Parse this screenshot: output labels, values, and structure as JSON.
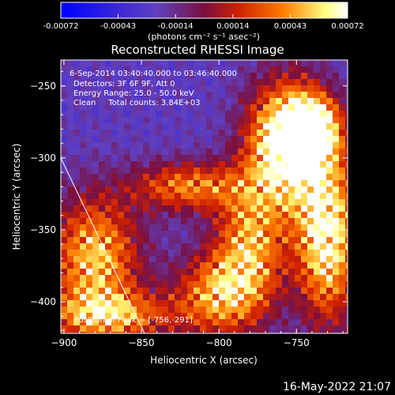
{
  "chart_data": {
    "type": "heatmap",
    "title": "Reconstructed RHESSI Image",
    "xlabel": "Heliocentric X (arcsec)",
    "ylabel": "Heliocentric Y (arcsec)",
    "xlim": [
      -902,
      -717
    ],
    "ylim": [
      -422,
      -232
    ],
    "x_ticks": [
      -900,
      -850,
      -800,
      -750
    ],
    "y_ticks": [
      -250,
      -300,
      -350,
      -400
    ],
    "colorbar": {
      "range": [
        -0.00072,
        0.00072
      ],
      "ticks": [
        "-0.00072",
        "-0.00043",
        "-0.00014",
        "0.00014",
        "0.00043",
        "0.00072"
      ],
      "unit_label": "(photons cm⁻² s⁻¹ asec⁻²)",
      "colormap": [
        "#0000ff",
        "#6040c0",
        "#7a1040",
        "#d02000",
        "#ff8000",
        "#ffff80",
        "#ffffff"
      ]
    },
    "annotations": [
      "6-Sep-2014 03:40:40.000 to 03:46:40.000",
      "Detectors: 3F 6F 9F, Att 0",
      "Energy Range: 25.0 - 50.0 keV",
      "Clean     Total counts: 3.84E+03",
      "Position of Peak = [-756,-291]"
    ],
    "peak": {
      "x": -756,
      "y": -291
    },
    "limb_line": [
      [
        -902,
        -300
      ],
      [
        -848,
        -422
      ]
    ],
    "hot_regions": [
      {
        "x": -756,
        "y": -291,
        "sx": 18,
        "sy": 30,
        "amp": 1.0
      },
      {
        "x": -740,
        "y": -280,
        "sx": 12,
        "sy": 15,
        "amp": 0.8
      },
      {
        "x": -730,
        "y": -355,
        "sx": 14,
        "sy": 40,
        "amp": 0.85
      },
      {
        "x": -780,
        "y": -360,
        "sx": 16,
        "sy": 30,
        "amp": 0.6
      },
      {
        "x": -820,
        "y": -320,
        "sx": 25,
        "sy": 12,
        "amp": 0.55
      },
      {
        "x": -880,
        "y": -370,
        "sx": 20,
        "sy": 30,
        "amp": 0.7
      },
      {
        "x": -800,
        "y": -395,
        "sx": 20,
        "sy": 20,
        "amp": 0.6
      },
      {
        "x": -870,
        "y": -410,
        "sx": 30,
        "sy": 12,
        "amp": 0.55
      }
    ]
  },
  "footer": {
    "datetime": "16-May-2022 21:07"
  }
}
